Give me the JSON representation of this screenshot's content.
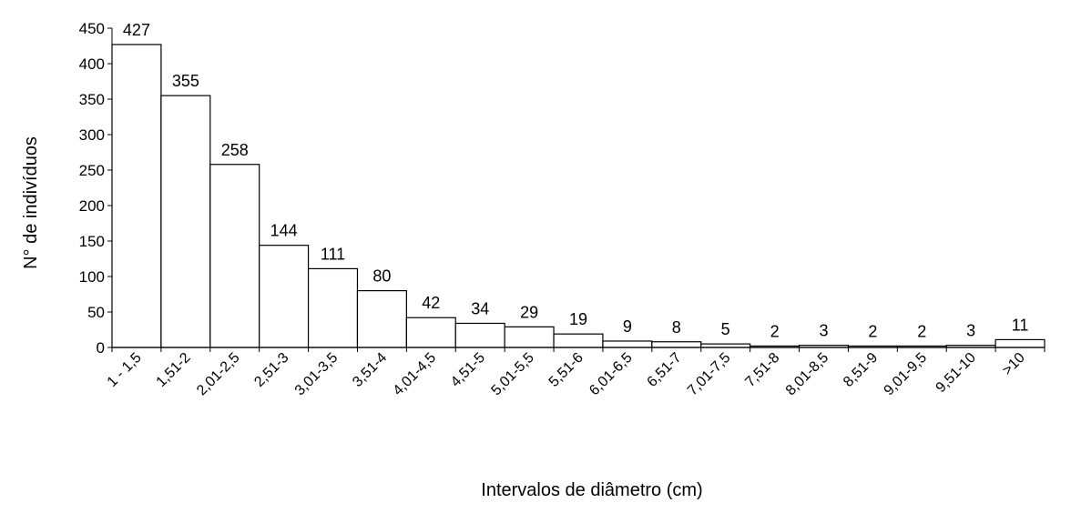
{
  "chart_data": {
    "type": "bar",
    "title": "",
    "xlabel": "Intervalos de diâmetro (cm)",
    "ylabel": "N° de indivíduos",
    "ylim": [
      0,
      450
    ],
    "yticks": [
      0,
      50,
      100,
      150,
      200,
      250,
      300,
      350,
      400,
      450
    ],
    "grid": false,
    "legend": "none",
    "categories": [
      "1 - 1,5",
      "1,51-2",
      "2,01-2,5",
      "2,51-3",
      "3,01-3,5",
      "3,51-4",
      "4,01-4,5",
      "4,51-5",
      "5,01-5,5",
      "5,51-6",
      "6,01-6,5",
      "6,51-7",
      "7,01-7,5",
      "7,51-8",
      "8,01-8,5",
      "8,51-9",
      "9,01-9,5",
      "9,51-10",
      ">10"
    ],
    "values": [
      427,
      355,
      258,
      144,
      111,
      80,
      42,
      34,
      29,
      19,
      9,
      8,
      5,
      2,
      3,
      2,
      2,
      3,
      11
    ],
    "colors": {
      "bar_fill": "#ffffff",
      "bar_stroke": "#000000",
      "axis": "#000000"
    }
  }
}
